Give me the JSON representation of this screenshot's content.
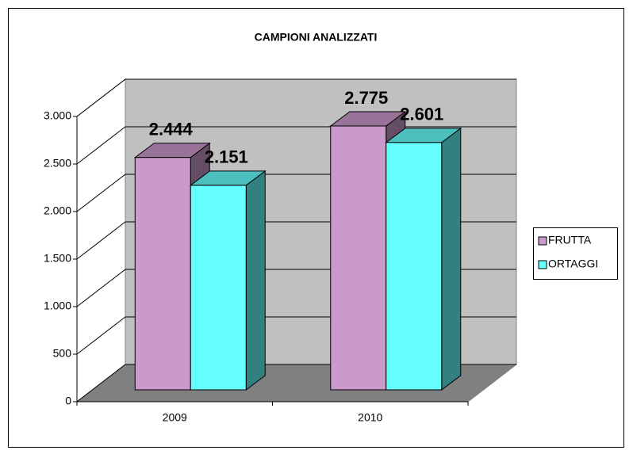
{
  "chart_data": {
    "type": "bar3d",
    "title": "CAMPIONI ANALIZZATI",
    "categories": [
      "2009",
      "2010"
    ],
    "series": [
      {
        "name": "FRUTTA",
        "color": "#cc99cc",
        "values": [
          2444,
          2775
        ],
        "value_labels": [
          "2.444",
          "2.775"
        ]
      },
      {
        "name": "ORTAGGI",
        "color": "#66ffff",
        "values": [
          2151,
          2601
        ],
        "value_labels": [
          "2.151",
          "2.601"
        ]
      }
    ],
    "ylim": [
      0,
      3000
    ],
    "yticks": [
      0,
      500,
      {
        "value": 1000,
        "label": "1.000"
      },
      {
        "value": 1500,
        "label": "1.500"
      },
      {
        "value": 2000,
        "label": "2.000"
      },
      {
        "value": 2500,
        "label": "2.500"
      },
      {
        "value": 3000,
        "label": "3.000"
      }
    ],
    "grid": true,
    "legend": "right"
  }
}
